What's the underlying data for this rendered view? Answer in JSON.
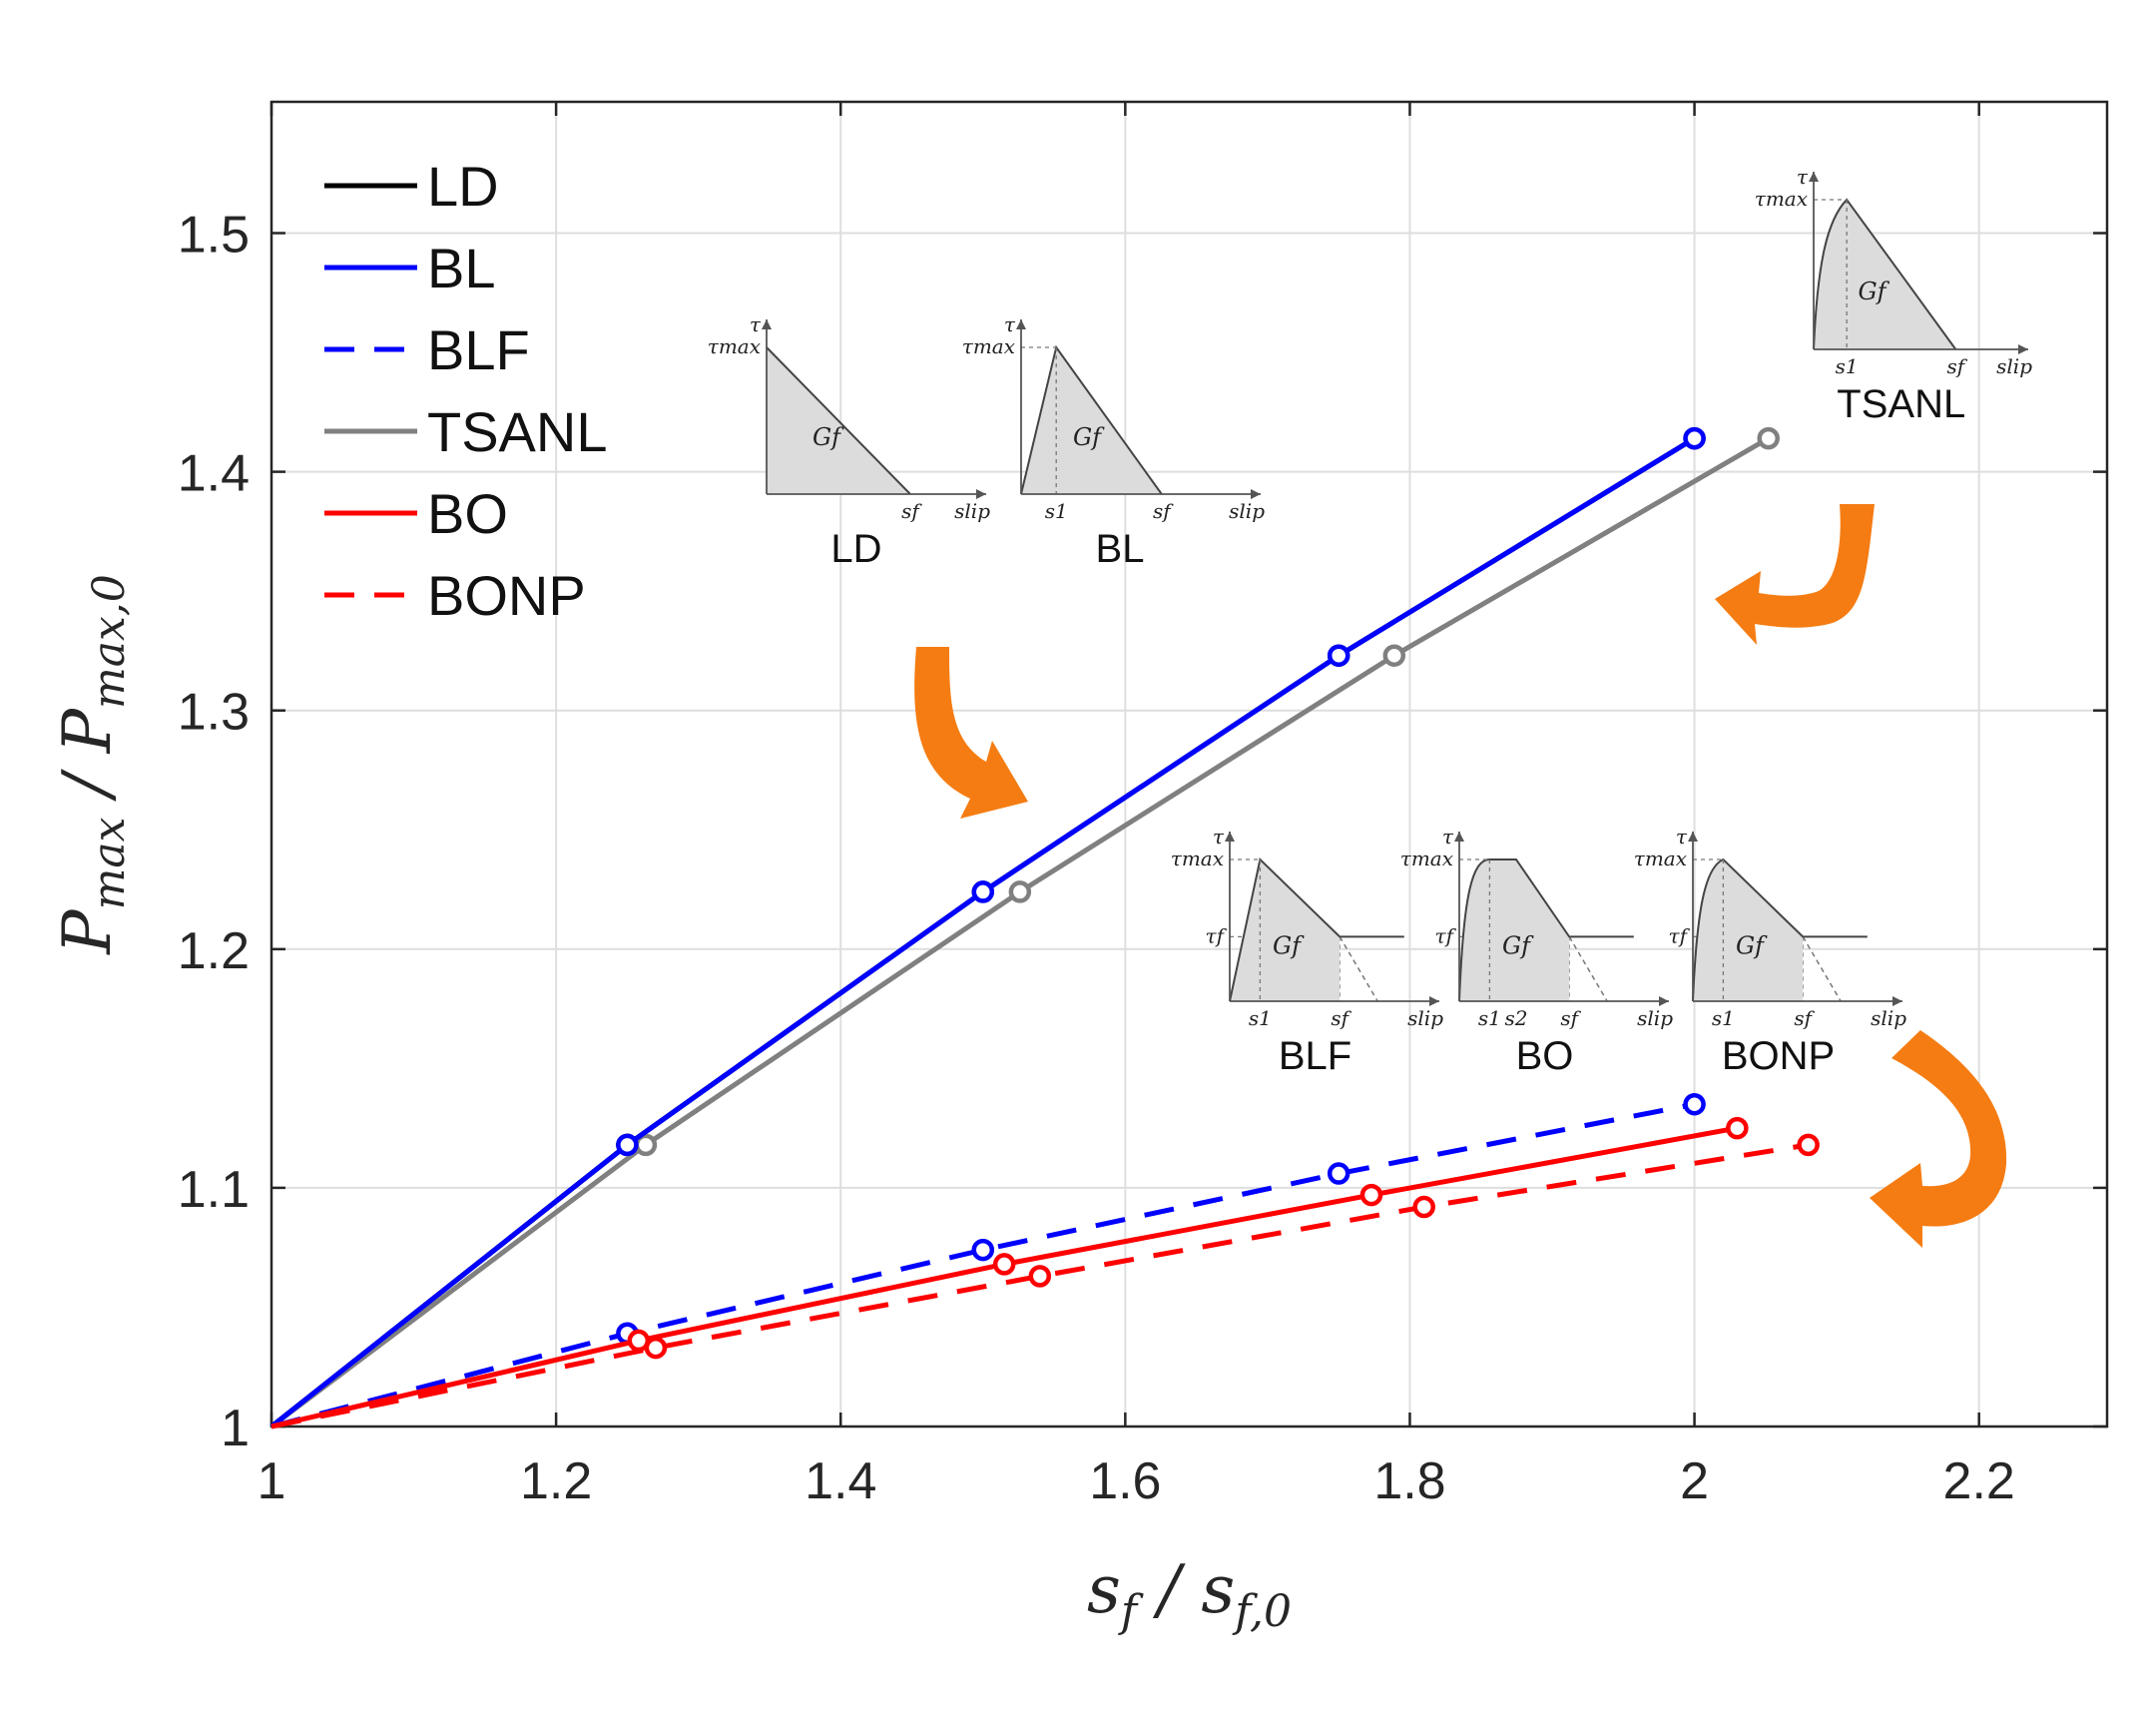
{
  "chart_data": {
    "type": "line",
    "title": "",
    "xlabel": "s_f / s_f,0",
    "ylabel": "P_max / P_max,0",
    "xlabel_parts": {
      "v1": "s",
      "s1": "f",
      "sep": " / ",
      "v2": "s",
      "s2": "f,0"
    },
    "ylabel_parts": {
      "v1": "P",
      "s1": "max",
      "sep": " / ",
      "v2": "P",
      "s2": "max,0"
    },
    "xlim": [
      1,
      2.29
    ],
    "ylim": [
      1,
      1.555
    ],
    "xticks": [
      1,
      1.2,
      1.4,
      1.6,
      1.8,
      2,
      2.2
    ],
    "xtick_labels": [
      "1",
      "1.2",
      "1.4",
      "1.6",
      "1.8",
      "2",
      "2.2"
    ],
    "yticks": [
      1,
      1.1,
      1.2,
      1.3,
      1.4,
      1.5
    ],
    "ytick_labels": [
      "1",
      "1.1",
      "1.2",
      "1.3",
      "1.4",
      "1.5"
    ],
    "grid": true,
    "legend_position": "top-left",
    "series": [
      {
        "name": "LD",
        "color": "#000000",
        "dash": "solid",
        "x": [
          1,
          1.25,
          1.5,
          1.75,
          2.0
        ],
        "y": [
          1,
          1.118,
          1.224,
          1.323,
          1.414
        ]
      },
      {
        "name": "BL",
        "color": "#0000ff",
        "dash": "solid",
        "x": [
          1,
          1.25,
          1.5,
          1.75,
          2.0
        ],
        "y": [
          1,
          1.118,
          1.224,
          1.323,
          1.414
        ]
      },
      {
        "name": "BLF",
        "color": "#0000ff",
        "dash": "dashed",
        "x": [
          1,
          1.25,
          1.5,
          1.75,
          2.0
        ],
        "y": [
          1,
          1.039,
          1.074,
          1.106,
          1.135
        ]
      },
      {
        "name": "TSANL",
        "color": "#808080",
        "dash": "solid",
        "x": [
          1,
          1.263,
          1.526,
          1.789,
          2.052
        ],
        "y": [
          1,
          1.118,
          1.224,
          1.323,
          1.414
        ]
      },
      {
        "name": "BO",
        "color": "#ff0000",
        "dash": "solid",
        "x": [
          1,
          1.258,
          1.515,
          1.773,
          2.03
        ],
        "y": [
          1,
          1.036,
          1.068,
          1.097,
          1.125
        ]
      },
      {
        "name": "BONP",
        "color": "#ff0000",
        "dash": "dashed",
        "x": [
          1,
          1.27,
          1.54,
          1.81,
          2.08
        ],
        "y": [
          1,
          1.033,
          1.063,
          1.092,
          1.118
        ]
      }
    ],
    "insets": [
      {
        "title": "LD",
        "tau": "τ",
        "tau_max": "τmax",
        "gf": "Gf",
        "s1": "",
        "s2": "",
        "sf": "sf",
        "slip": "slip",
        "tau_f": ""
      },
      {
        "title": "BL",
        "tau": "τ",
        "tau_max": "τmax",
        "gf": "Gf",
        "s1": "s1",
        "s2": "",
        "sf": "sf",
        "slip": "slip",
        "tau_f": ""
      },
      {
        "title": "TSANL",
        "tau": "τ",
        "tau_max": "τmax",
        "gf": "Gf",
        "s1": "s1",
        "s2": "",
        "sf": "sf",
        "slip": "slip",
        "tau_f": ""
      },
      {
        "title": "BLF",
        "tau": "τ",
        "tau_max": "τmax",
        "gf": "Gf",
        "s1": "s1",
        "s2": "",
        "sf": "sf",
        "slip": "slip",
        "tau_f": "τf"
      },
      {
        "title": "BO",
        "tau": "τ",
        "tau_max": "τmax",
        "gf": "Gf",
        "s1": "s1",
        "s2": "s2",
        "sf": "sf",
        "slip": "slip",
        "tau_f": "τf"
      },
      {
        "title": "BONP",
        "tau": "τ",
        "tau_max": "τmax",
        "gf": "Gf",
        "s1": "s1",
        "s2": "",
        "sf": "sf",
        "slip": "slip",
        "tau_f": "τf"
      }
    ],
    "arrow_color": "#f57c12"
  }
}
